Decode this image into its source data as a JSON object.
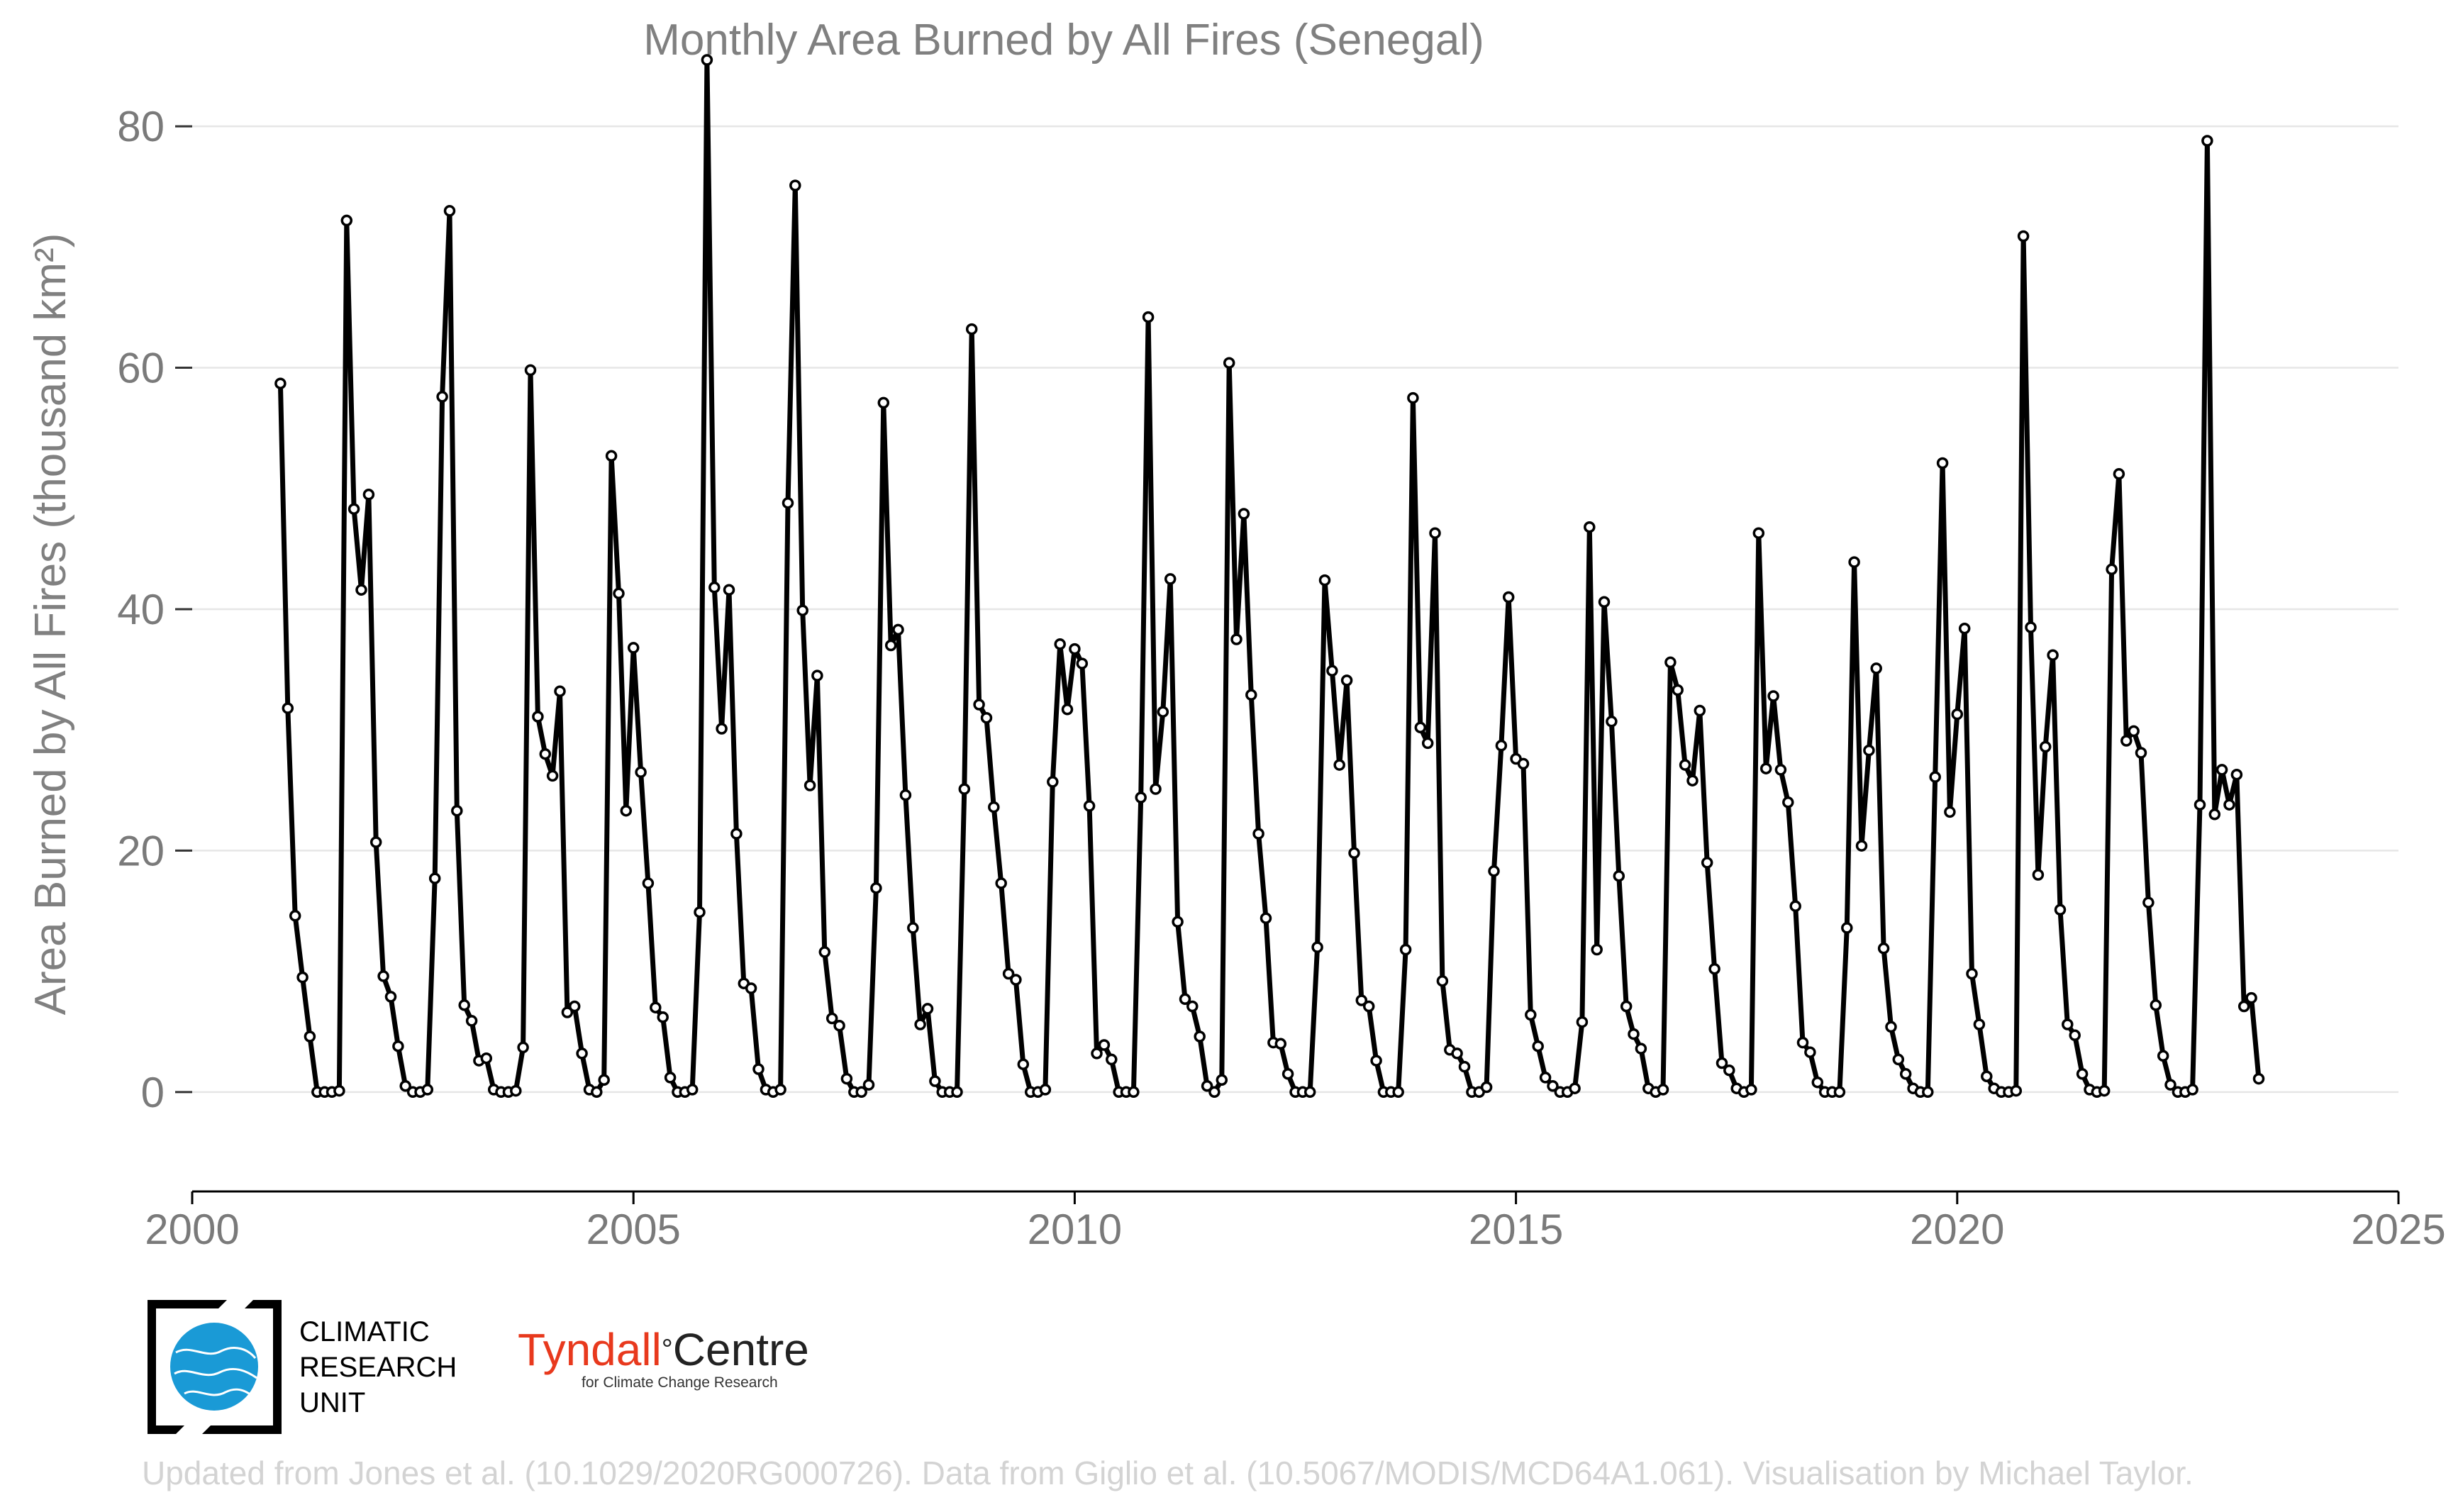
{
  "chart_data": {
    "type": "line",
    "title": "Monthly Area Burned by All Fires (Senegal)",
    "ylabel": "Area Burned by All Fires (thousand km²)",
    "xlabel": "",
    "xlim": [
      2000,
      2025
    ],
    "ylim": [
      -7,
      85
    ],
    "xticks": [
      2000,
      2005,
      2010,
      2015,
      2020,
      2025
    ],
    "yticks": [
      0,
      20,
      40,
      60,
      80
    ],
    "grid": "horizontal",
    "line_color": "#000000",
    "start": "2001-01",
    "series": [
      {
        "values": [
          58.7,
          31.8,
          14.6,
          9.5,
          4.6,
          0.0,
          0.0,
          0.0,
          0.1,
          72.2,
          48.3,
          41.6,
          49.5,
          20.7,
          9.6,
          7.9,
          3.8,
          0.5,
          0.0,
          0.0,
          0.2,
          17.7,
          57.6,
          73.0,
          23.3,
          7.2,
          5.9,
          2.6,
          2.8,
          0.2,
          0.0,
          0.0,
          0.1,
          3.7,
          59.8,
          31.1,
          28.0,
          26.2,
          33.2,
          6.6,
          7.1,
          3.2,
          0.2,
          0.0,
          1.0,
          52.7,
          41.3,
          23.3,
          36.8,
          26.5,
          17.3,
          7.0,
          6.2,
          1.2,
          0.0,
          0.0,
          0.2,
          14.9,
          85.5,
          41.8,
          30.1,
          41.6,
          21.4,
          9.0,
          8.6,
          1.9,
          0.2,
          0.0,
          0.2,
          48.8,
          75.1,
          39.9,
          25.4,
          34.5,
          11.6,
          6.1,
          5.5,
          1.1,
          0.0,
          0.0,
          0.6,
          16.9,
          57.1,
          37.0,
          38.3,
          24.6,
          13.6,
          5.6,
          6.9,
          0.9,
          0.0,
          0.0,
          0.0,
          25.1,
          63.2,
          32.1,
          31.0,
          23.6,
          17.3,
          9.8,
          9.3,
          2.3,
          0.0,
          0.0,
          0.2,
          25.7,
          37.1,
          31.7,
          36.7,
          35.5,
          23.7,
          3.2,
          3.9,
          2.7,
          0.0,
          0.0,
          0.0,
          24.4,
          64.2,
          25.1,
          31.5,
          42.5,
          14.1,
          7.7,
          7.1,
          4.6,
          0.5,
          0.0,
          1.0,
          60.4,
          37.5,
          47.9,
          32.9,
          21.4,
          14.4,
          4.1,
          4.0,
          1.5,
          0.0,
          0.0,
          0.0,
          12.0,
          42.4,
          34.9,
          27.1,
          34.1,
          19.8,
          7.6,
          7.1,
          2.6,
          0.0,
          0.0,
          0.0,
          11.8,
          57.5,
          30.2,
          28.9,
          46.3,
          9.2,
          3.5,
          3.2,
          2.1,
          0.0,
          0.0,
          0.4,
          18.3,
          28.7,
          41.0,
          27.6,
          27.2,
          6.4,
          3.8,
          1.2,
          0.5,
          0.0,
          0.0,
          0.3,
          5.8,
          46.8,
          11.8,
          40.6,
          30.7,
          17.9,
          7.1,
          4.8,
          3.6,
          0.3,
          0.0,
          0.2,
          35.6,
          33.3,
          27.1,
          25.8,
          31.6,
          19.0,
          10.2,
          2.4,
          1.8,
          0.3,
          0.0,
          0.2,
          46.3,
          26.8,
          32.8,
          26.7,
          24.0,
          15.4,
          4.1,
          3.3,
          0.8,
          0.0,
          0.0,
          0.0,
          13.6,
          43.9,
          20.4,
          28.3,
          35.1,
          11.9,
          5.4,
          2.7,
          1.5,
          0.3,
          0.0,
          0.0,
          26.1,
          52.1,
          23.2,
          31.3,
          38.4,
          9.8,
          5.6,
          1.3,
          0.3,
          0.0,
          0.0,
          0.1,
          70.9,
          38.5,
          18.0,
          28.6,
          36.2,
          15.1,
          5.6,
          4.7,
          1.5,
          0.2,
          0.0,
          0.1,
          43.3,
          51.2,
          29.1,
          29.9,
          28.1,
          15.7,
          7.2,
          3.0,
          0.6,
          0.0,
          0.0,
          0.2,
          23.8,
          78.8,
          23.0,
          26.7,
          23.8,
          26.3,
          7.1,
          7.8,
          1.1
        ]
      }
    ]
  },
  "logos": {
    "cru_text": [
      "CLIMATIC",
      "RESEARCH",
      "UNIT"
    ],
    "tyndall_name_a": "Tyndall",
    "tyndall_degree": "°",
    "tyndall_name_b": "Centre",
    "tyndall_sub": "for Climate Change Research"
  },
  "footer": "Updated from Jones et al. (10.1029/2020RG000726). Data from Giglio et al. (10.5067/MODIS/MCD64A1.061). Visualisation by Michael Taylor.",
  "colors": {
    "cru_blue": "#1a9ad6",
    "tyndall_red": "#e8391d"
  }
}
